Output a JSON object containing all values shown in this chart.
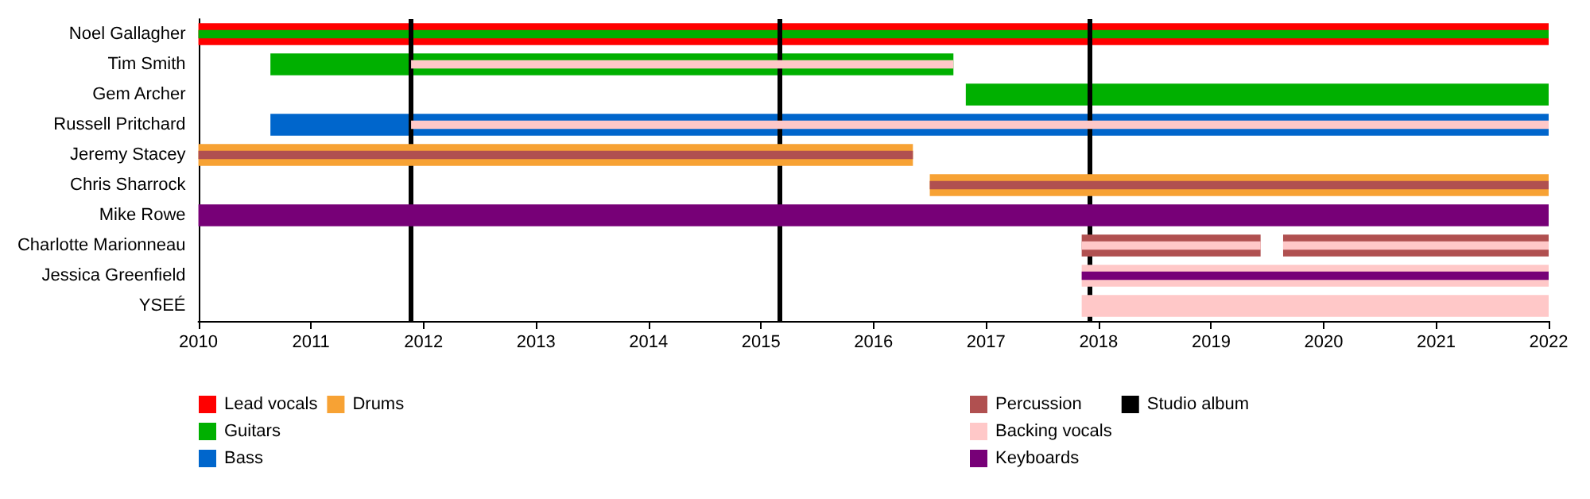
{
  "chart_data": {
    "type": "bar",
    "orientation": "horizontal",
    "categories": [
      "Noel Gallagher",
      "Tim Smith",
      "Gem Archer",
      "Russell Pritchard",
      "Jeremy Stacey",
      "Chris Sharrock",
      "Mike Rowe",
      "Charlotte Marionneau",
      "Jessica Greenfield",
      "YSEÉ"
    ],
    "series": [
      {
        "name": "Lead vocals",
        "color": "#ff0000",
        "base": [
          2010,
          null,
          null,
          null,
          null,
          null,
          null,
          null,
          null,
          null
        ],
        "values": [
          12,
          null,
          null,
          null,
          null,
          null,
          null,
          null,
          null,
          null
        ]
      },
      {
        "name": "Guitars",
        "color": "#00b000",
        "base": [
          2010,
          2010.64,
          2016.82,
          null,
          null,
          null,
          null,
          null,
          null,
          null
        ],
        "values": [
          12,
          6.07,
          5.18,
          null,
          null,
          null,
          null,
          null,
          null,
          null
        ]
      },
      {
        "name": "Bass",
        "color": "#0066cc",
        "base": [
          null,
          null,
          null,
          2010.64,
          null,
          null,
          null,
          null,
          null,
          null
        ],
        "values": [
          null,
          null,
          null,
          11.36,
          null,
          null,
          null,
          null,
          null,
          null
        ]
      },
      {
        "name": "Drums",
        "color": "#f7a234",
        "base": [
          null,
          null,
          null,
          null,
          2010,
          2016.5,
          null,
          null,
          null,
          null
        ],
        "values": [
          null,
          null,
          null,
          null,
          6.35,
          5.5,
          null,
          null,
          null,
          null
        ]
      },
      {
        "name": "Percussion",
        "color": "#b05050",
        "base": [
          null,
          null,
          null,
          null,
          2010,
          2016.5,
          null,
          2017.85,
          null,
          null
        ],
        "values": [
          null,
          null,
          null,
          null,
          6.35,
          5.5,
          null,
          1.59,
          null,
          null
        ]
      },
      {
        "color": "#b05050",
        "base": [
          null,
          null,
          null,
          null,
          null,
          null,
          null,
          2019.64,
          null,
          null
        ],
        "values": [
          null,
          null,
          null,
          null,
          null,
          null,
          null,
          2.36,
          null,
          null
        ]
      },
      {
        "name": "Backing vocals",
        "color": "#ffc8c8",
        "base": [
          null,
          2011.89,
          null,
          2011.89,
          null,
          null,
          null,
          2017.85,
          2017.85,
          2017.85
        ],
        "values": [
          null,
          4.82,
          null,
          10.11,
          null,
          null,
          null,
          1.59,
          4.15,
          4.15
        ]
      },
      {
        "color": "#ffc8c8",
        "base": [
          null,
          null,
          null,
          null,
          null,
          null,
          null,
          2019.64,
          null,
          null
        ],
        "values": [
          null,
          null,
          null,
          null,
          null,
          null,
          null,
          2.36,
          null,
          null
        ]
      },
      {
        "name": "Keyboards",
        "color": "#770077",
        "base": [
          null,
          null,
          null,
          null,
          null,
          null,
          2010,
          null,
          2017.85,
          null
        ],
        "values": [
          null,
          null,
          null,
          null,
          null,
          null,
          12,
          null,
          4.15,
          null
        ]
      }
    ],
    "ref_lines": [
      {
        "axis": "x",
        "value": 2011.88,
        "color": "#000000",
        "label": "Studio album"
      },
      {
        "axis": "x",
        "value": 2015.16,
        "color": "#000000"
      },
      {
        "axis": "x",
        "value": 2017.92,
        "color": "#000000"
      }
    ],
    "xlim": [
      2010,
      2022
    ],
    "xticks": [
      2010,
      2011,
      2012,
      2013,
      2014,
      2015,
      2016,
      2017,
      2018,
      2019,
      2020,
      2021,
      2022
    ],
    "grid": false,
    "legend": "bottom"
  }
}
